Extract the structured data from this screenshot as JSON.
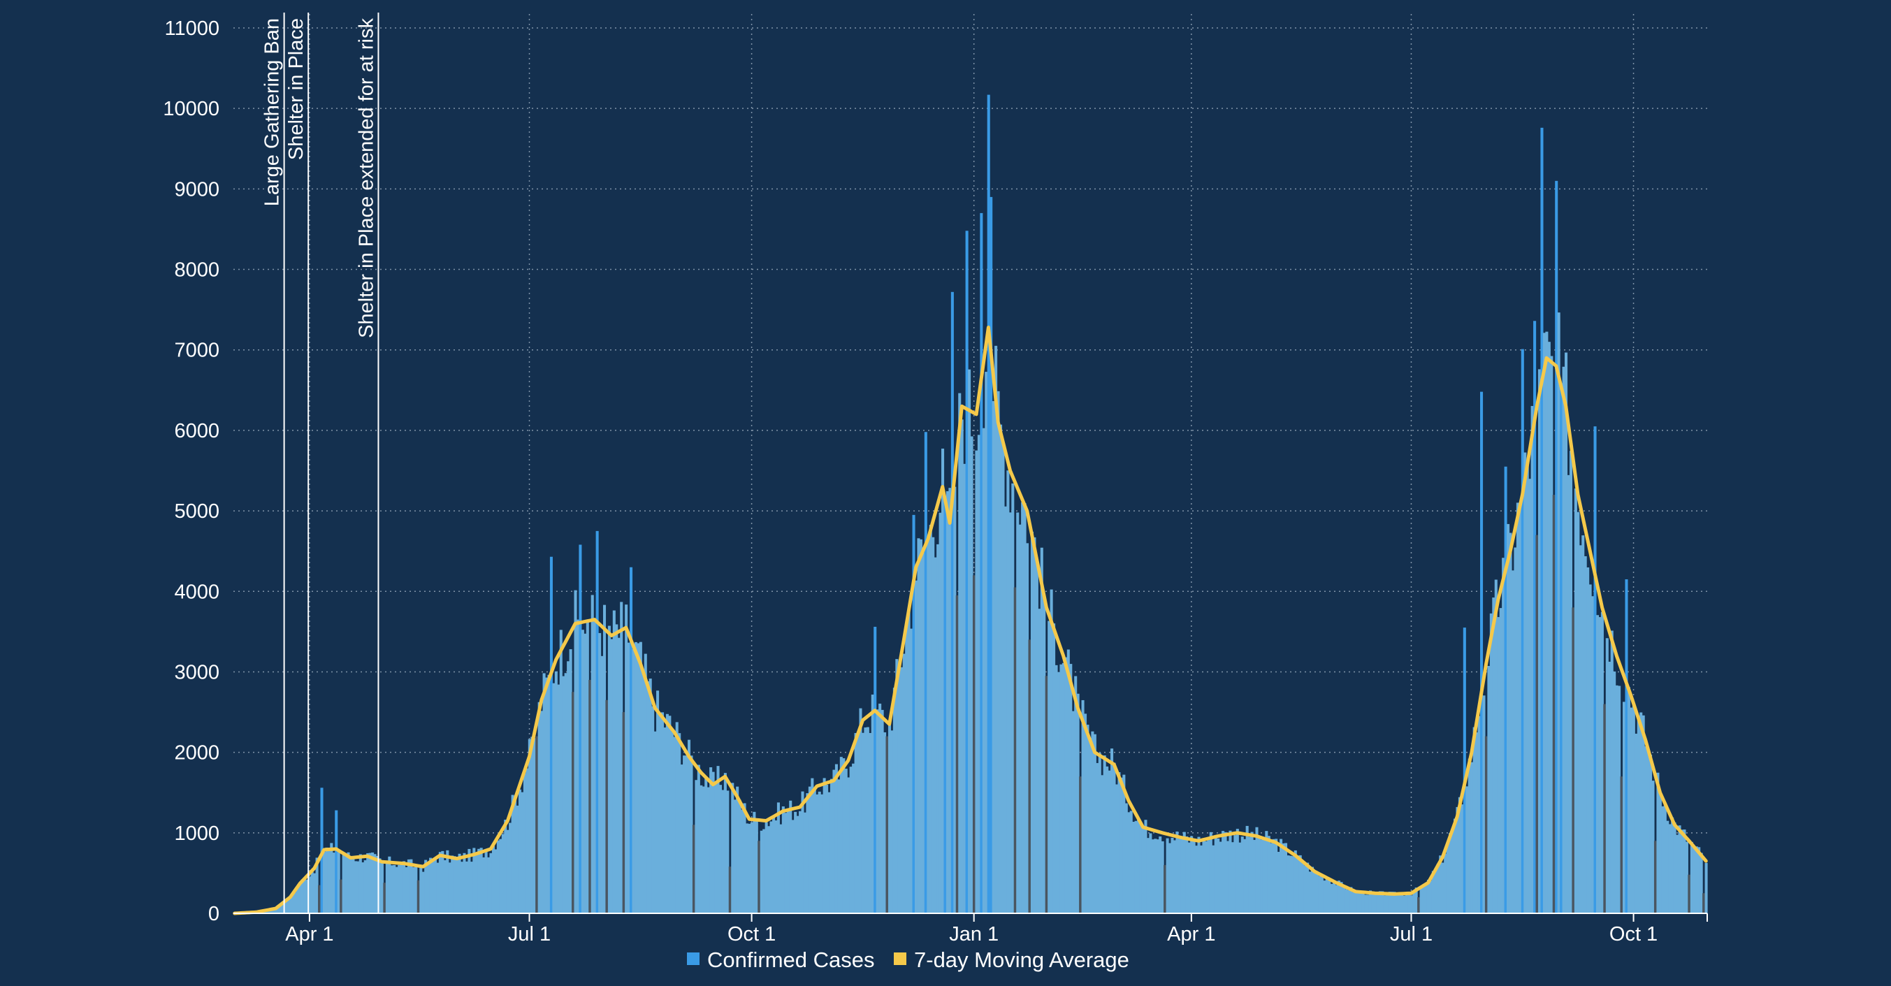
{
  "chart_data": {
    "type": "bar",
    "colors": {
      "background": "#14304f",
      "bars": "#6aafdc",
      "bar_spikes": "#3a9be6",
      "bar_dips": "#4a5560",
      "line": "#f5c94a",
      "grid": "#7f93a8",
      "axis": "#ffffff",
      "event_lines": "#ffffff"
    },
    "x_start_date": "2020-03-01",
    "x_end_date": "2021-10-31",
    "x_ticks": [
      {
        "date": "2020-04-01",
        "label": "Apr 1"
      },
      {
        "date": "2020-07-01",
        "label": "Jul 1"
      },
      {
        "date": "2020-10-01",
        "label": "Oct 1"
      },
      {
        "date": "2021-01-01",
        "label": "Jan 1"
      },
      {
        "date": "2021-04-01",
        "label": "Apr 1"
      },
      {
        "date": "2021-07-01",
        "label": "Jul 1"
      },
      {
        "date": "2021-10-01",
        "label": "Oct 1"
      }
    ],
    "ylim": [
      0,
      11000
    ],
    "y_ticks": [
      "0",
      "1000",
      "2000",
      "3000",
      "4000",
      "5000",
      "6000",
      "7000",
      "8000",
      "9000",
      "10000",
      "11000"
    ],
    "grid": true,
    "legend": {
      "position": "bottom",
      "items": [
        {
          "label": "Confirmed Cases",
          "color": "#3a9be6"
        },
        {
          "label": "7-day Moving Average",
          "color": "#f5c94a"
        }
      ]
    },
    "events": [
      {
        "date": "2020-03-22",
        "label": "Large Gathering Ban"
      },
      {
        "date": "2020-04-01",
        "label": "Shelter in Place"
      },
      {
        "date": "2020-04-30",
        "label": "Shelter in Place extended for at risk"
      }
    ],
    "series": [
      {
        "name": "7-day Moving Average",
        "points": [
          [
            "2020-03-01",
            0
          ],
          [
            "2020-03-10",
            15
          ],
          [
            "2020-03-18",
            60
          ],
          [
            "2020-03-24",
            200
          ],
          [
            "2020-03-28",
            370
          ],
          [
            "2020-04-03",
            560
          ],
          [
            "2020-04-07",
            790
          ],
          [
            "2020-04-12",
            800
          ],
          [
            "2020-04-18",
            690
          ],
          [
            "2020-04-25",
            710
          ],
          [
            "2020-05-01",
            640
          ],
          [
            "2020-05-10",
            620
          ],
          [
            "2020-05-18",
            580
          ],
          [
            "2020-05-25",
            720
          ],
          [
            "2020-06-01",
            680
          ],
          [
            "2020-06-08",
            730
          ],
          [
            "2020-06-15",
            800
          ],
          [
            "2020-06-22",
            1150
          ],
          [
            "2020-07-01",
            1950
          ],
          [
            "2020-07-06",
            2650
          ],
          [
            "2020-07-12",
            3150
          ],
          [
            "2020-07-20",
            3600
          ],
          [
            "2020-07-28",
            3650
          ],
          [
            "2020-08-04",
            3450
          ],
          [
            "2020-08-10",
            3550
          ],
          [
            "2020-08-16",
            3100
          ],
          [
            "2020-08-22",
            2550
          ],
          [
            "2020-08-30",
            2250
          ],
          [
            "2020-09-05",
            1950
          ],
          [
            "2020-09-10",
            1750
          ],
          [
            "2020-09-15",
            1600
          ],
          [
            "2020-09-20",
            1700
          ],
          [
            "2020-09-25",
            1450
          ],
          [
            "2020-09-30",
            1170
          ],
          [
            "2020-10-07",
            1150
          ],
          [
            "2020-10-14",
            1270
          ],
          [
            "2020-10-21",
            1320
          ],
          [
            "2020-10-28",
            1580
          ],
          [
            "2020-11-04",
            1650
          ],
          [
            "2020-11-10",
            1900
          ],
          [
            "2020-11-16",
            2400
          ],
          [
            "2020-11-21",
            2520
          ],
          [
            "2020-11-27",
            2350
          ],
          [
            "2020-12-03",
            3400
          ],
          [
            "2020-12-08",
            4300
          ],
          [
            "2020-12-13",
            4650
          ],
          [
            "2020-12-19",
            5300
          ],
          [
            "2020-12-22",
            4850
          ],
          [
            "2020-12-27",
            6300
          ],
          [
            "2021-01-02",
            6200
          ],
          [
            "2021-01-07",
            7280
          ],
          [
            "2021-01-11",
            6100
          ],
          [
            "2021-01-16",
            5500
          ],
          [
            "2021-01-23",
            5000
          ],
          [
            "2021-01-31",
            3800
          ],
          [
            "2021-02-07",
            3200
          ],
          [
            "2021-02-13",
            2550
          ],
          [
            "2021-02-20",
            2000
          ],
          [
            "2021-02-28",
            1850
          ],
          [
            "2021-03-06",
            1400
          ],
          [
            "2021-03-12",
            1070
          ],
          [
            "2021-03-20",
            1000
          ],
          [
            "2021-03-28",
            940
          ],
          [
            "2021-04-04",
            900
          ],
          [
            "2021-04-12",
            960
          ],
          [
            "2021-04-20",
            1000
          ],
          [
            "2021-04-28",
            960
          ],
          [
            "2021-05-06",
            880
          ],
          [
            "2021-05-14",
            720
          ],
          [
            "2021-05-22",
            520
          ],
          [
            "2021-05-31",
            380
          ],
          [
            "2021-06-08",
            270
          ],
          [
            "2021-06-16",
            250
          ],
          [
            "2021-06-24",
            240
          ],
          [
            "2021-07-01",
            250
          ],
          [
            "2021-07-08",
            380
          ],
          [
            "2021-07-14",
            700
          ],
          [
            "2021-07-20",
            1200
          ],
          [
            "2021-07-26",
            2000
          ],
          [
            "2021-08-01",
            3100
          ],
          [
            "2021-08-06",
            3900
          ],
          [
            "2021-08-11",
            4500
          ],
          [
            "2021-08-16",
            5200
          ],
          [
            "2021-08-22",
            6300
          ],
          [
            "2021-08-26",
            6900
          ],
          [
            "2021-08-30",
            6800
          ],
          [
            "2021-09-03",
            6300
          ],
          [
            "2021-09-08",
            5200
          ],
          [
            "2021-09-13",
            4500
          ],
          [
            "2021-09-18",
            3800
          ],
          [
            "2021-09-24",
            3200
          ],
          [
            "2021-09-30",
            2700
          ],
          [
            "2021-10-06",
            2150
          ],
          [
            "2021-10-12",
            1500
          ],
          [
            "2021-10-18",
            1100
          ],
          [
            "2021-10-24",
            900
          ],
          [
            "2021-10-31",
            650
          ]
        ]
      },
      {
        "name": "Confirmed Cases",
        "spikes": [
          [
            "2020-04-06",
            1560
          ],
          [
            "2020-04-12",
            1280
          ],
          [
            "2020-07-10",
            4430
          ],
          [
            "2020-07-22",
            4580
          ],
          [
            "2020-07-29",
            4750
          ],
          [
            "2020-08-12",
            4300
          ],
          [
            "2020-11-21",
            3560
          ],
          [
            "2020-12-07",
            4950
          ],
          [
            "2020-12-12",
            5980
          ],
          [
            "2020-12-20",
            5150
          ],
          [
            "2020-12-23",
            7720
          ],
          [
            "2020-12-29",
            8480
          ],
          [
            "2021-01-04",
            8700
          ],
          [
            "2021-01-07",
            10170
          ],
          [
            "2021-01-08",
            8900
          ],
          [
            "2021-07-23",
            3550
          ],
          [
            "2021-07-30",
            6480
          ],
          [
            "2021-08-09",
            5550
          ],
          [
            "2021-08-16",
            7010
          ],
          [
            "2021-08-21",
            7360
          ],
          [
            "2021-08-24",
            9760
          ],
          [
            "2021-08-30",
            9100
          ],
          [
            "2021-09-01",
            6500
          ],
          [
            "2021-09-15",
            6050
          ],
          [
            "2021-09-28",
            4150
          ]
        ],
        "dips": [
          [
            "2020-04-05",
            350
          ],
          [
            "2020-04-14",
            420
          ],
          [
            "2020-05-02",
            380
          ],
          [
            "2020-05-16",
            410
          ],
          [
            "2020-07-04",
            2200
          ],
          [
            "2020-07-19",
            2750
          ],
          [
            "2020-07-26",
            2900
          ],
          [
            "2020-08-02",
            2650
          ],
          [
            "2020-08-09",
            2500
          ],
          [
            "2020-09-07",
            1100
          ],
          [
            "2020-09-22",
            580
          ],
          [
            "2020-10-04",
            900
          ],
          [
            "2020-11-26",
            2200
          ],
          [
            "2020-12-25",
            3950
          ],
          [
            "2021-01-01",
            4200
          ],
          [
            "2021-01-18",
            4050
          ],
          [
            "2021-01-24",
            3400
          ],
          [
            "2021-01-31",
            2950
          ],
          [
            "2021-02-14",
            1700
          ],
          [
            "2021-03-21",
            600
          ],
          [
            "2021-07-04",
            200
          ],
          [
            "2021-08-01",
            2200
          ],
          [
            "2021-08-22",
            4700
          ],
          [
            "2021-08-29",
            5200
          ],
          [
            "2021-09-06",
            3800
          ],
          [
            "2021-09-19",
            2600
          ],
          [
            "2021-09-26",
            1700
          ],
          [
            "2021-10-10",
            900
          ],
          [
            "2021-10-24",
            480
          ],
          [
            "2021-10-30",
            250
          ]
        ]
      }
    ]
  }
}
